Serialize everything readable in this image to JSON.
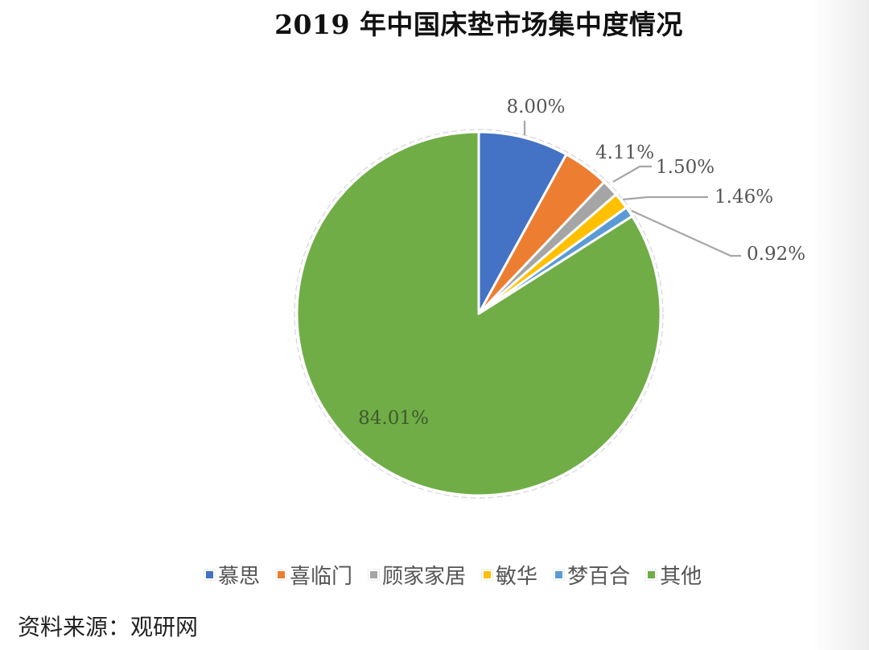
{
  "chart_data": {
    "type": "pie",
    "title": "2019 年中国床垫市场集中度情况",
    "categories": [
      "慕思",
      "喜临门",
      "顾家家居",
      "敏华",
      "梦百合",
      "其他"
    ],
    "values": [
      8.0,
      4.11,
      1.5,
      1.46,
      0.92,
      84.01
    ],
    "labels": [
      "8.00%",
      "4.11%",
      "1.50%",
      "1.46%",
      "0.92%",
      "84.01%"
    ],
    "colors": [
      "#4472C4",
      "#ED7D31",
      "#A5A5A5",
      "#FFC000",
      "#5B9BD5",
      "#70AD47"
    ],
    "start_angle": "12 o'clock",
    "direction": "clockwise",
    "legend_position": "bottom",
    "xlabel": "",
    "ylabel": ""
  },
  "title": "2019 年中国床垫市场集中度情况",
  "legend": {
    "items": [
      {
        "label": "慕思",
        "color": "#4472C4"
      },
      {
        "label": "喜临门",
        "color": "#ED7D31"
      },
      {
        "label": "顾家家居",
        "color": "#A5A5A5"
      },
      {
        "label": "敏华",
        "color": "#FFC000"
      },
      {
        "label": "梦百合",
        "color": "#5B9BD5"
      },
      {
        "label": "其他",
        "color": "#70AD47"
      }
    ]
  },
  "source": "资料来源：观研网"
}
